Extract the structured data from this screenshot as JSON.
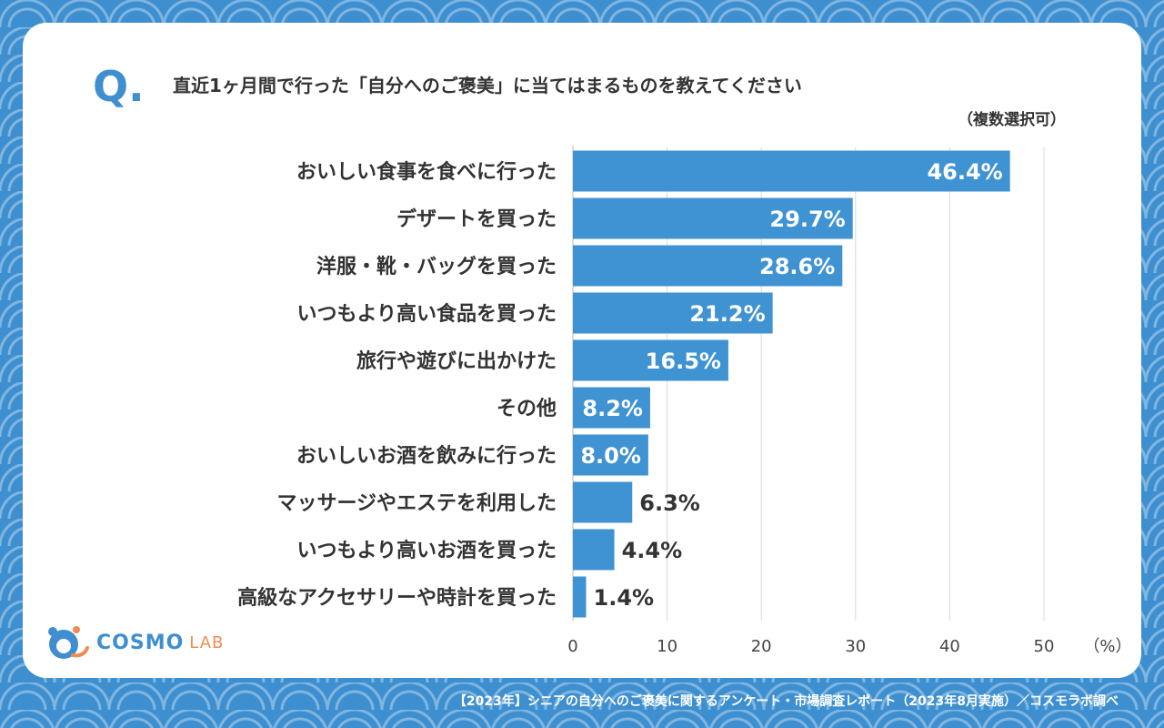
{
  "question": {
    "mark": "Q.",
    "text": "直近1ヶ月間で行った「自分へのご褒美」に当てはまるものを教えてください",
    "note": "（複数選択可）"
  },
  "chart_data": {
    "type": "bar",
    "orientation": "horizontal",
    "categories": [
      "おいしい食事を食べに行った",
      "デザートを買った",
      "洋服・靴・バッグを買った",
      "いつもより高い食品を買った",
      "旅行や遊びに出かけた",
      "その他",
      "おいしいお酒を飲みに行った",
      "マッサージやエステを利用した",
      "いつもより高いお酒を買った",
      "高級なアクセサリーや時計を買った"
    ],
    "values": [
      46.4,
      29.7,
      28.6,
      21.2,
      16.5,
      8.2,
      8.0,
      6.3,
      4.4,
      1.4
    ],
    "value_labels": [
      "46.4%",
      "29.7%",
      "28.6%",
      "21.2%",
      "16.5%",
      "8.2%",
      "8.0%",
      "6.3%",
      "4.4%",
      "1.4%"
    ],
    "x_ticks": [
      "0",
      "10",
      "20",
      "30",
      "40",
      "50"
    ],
    "x_unit": "（%）",
    "xlim": [
      0,
      50
    ],
    "grid": true,
    "bar_color": "#4093d2"
  },
  "logo": {
    "name": "COSMO",
    "suffix": "LAB"
  },
  "footer": "【2023年】シニアの自分へのご褒美に関するアンケート・市場調査レポート（2023年8月実施）／コスモラボ調べ",
  "colors": {
    "background": "#3d8fd0",
    "accent": "#3f8fd0",
    "text": "#333333"
  }
}
